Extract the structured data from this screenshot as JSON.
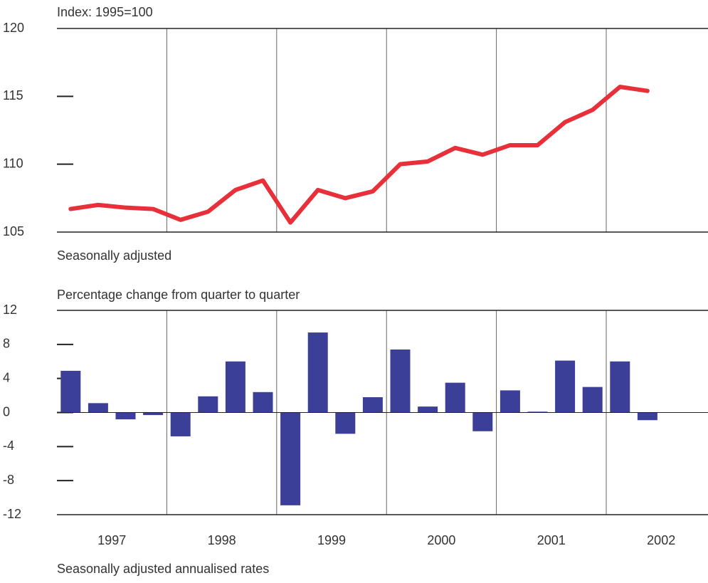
{
  "chart_data": [
    {
      "type": "line",
      "ylabel": "Index: 1995=100",
      "note": "Seasonally adjusted",
      "color": "#e8303a",
      "ylim": [
        105,
        120
      ],
      "yticks": [
        105,
        110,
        115,
        120
      ],
      "values": [
        106.7,
        107.0,
        106.8,
        106.7,
        105.9,
        106.5,
        108.1,
        108.8,
        105.7,
        108.1,
        107.5,
        108.0,
        110.0,
        110.2,
        111.2,
        110.7,
        111.4,
        111.4,
        113.1,
        114.0,
        115.7,
        115.4
      ]
    },
    {
      "type": "bar",
      "ylabel": "Percentage change from quarter to quarter",
      "note": "Seasonally adjusted annualised rates",
      "color": "#3b3f98",
      "ylim": [
        -12,
        12
      ],
      "yticks": [
        -12,
        -8,
        -4,
        0,
        4,
        8,
        12
      ],
      "groups": [
        "1997",
        "1998",
        "1999",
        "2000",
        "2001",
        "2002"
      ],
      "values": [
        4.9,
        1.1,
        -0.8,
        -0.3,
        -2.8,
        1.9,
        6.0,
        2.4,
        -10.9,
        9.4,
        -2.5,
        1.8,
        7.4,
        0.7,
        3.5,
        -2.2,
        2.6,
        0.1,
        6.1,
        3.0,
        6.0,
        -0.9
      ]
    }
  ]
}
